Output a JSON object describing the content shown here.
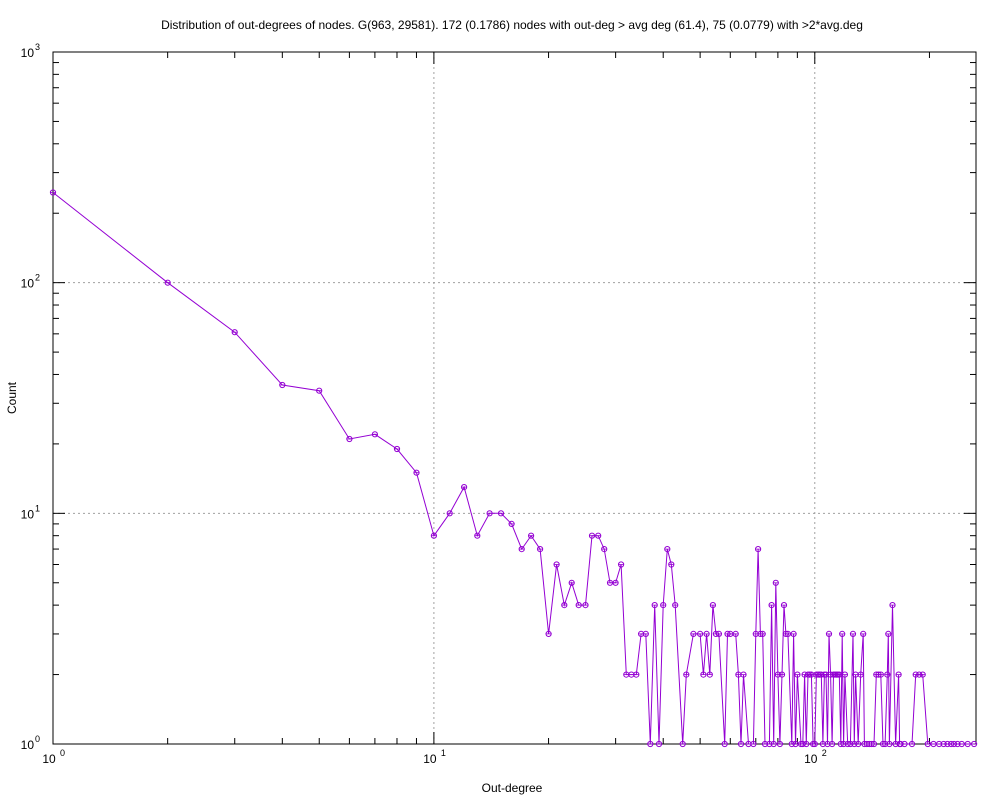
{
  "chart_data": {
    "type": "line",
    "title": "Distribution of out-degrees of nodes. G(963, 29581). 172 (0.1786) nodes with out-deg > avg deg (61.4), 75 (0.0779) with >2*avg.deg",
    "xlabel": "Out-degree",
    "ylabel": "Count",
    "xscale": "log",
    "yscale": "log",
    "xlim": [
      1,
      265
    ],
    "ylim": [
      1,
      1000
    ],
    "grid": true,
    "line_color": "#9400d3",
    "x_ticks": [
      {
        "base": "10",
        "exp": "0",
        "value": 1
      },
      {
        "base": "10",
        "exp": "1",
        "value": 10
      },
      {
        "base": "10",
        "exp": "2",
        "value": 100
      }
    ],
    "y_ticks": [
      {
        "base": "10",
        "exp": "0",
        "value": 1
      },
      {
        "base": "10",
        "exp": "1",
        "value": 10
      },
      {
        "base": "10",
        "exp": "2",
        "value": 100
      },
      {
        "base": "10",
        "exp": "3",
        "value": 1000
      }
    ],
    "series": [
      {
        "points": [
          [
            1,
            246
          ],
          [
            2,
            100
          ],
          [
            3,
            61
          ],
          [
            4,
            36
          ],
          [
            5,
            34
          ],
          [
            6,
            21
          ],
          [
            7,
            22
          ],
          [
            8,
            19
          ],
          [
            9,
            15
          ],
          [
            10,
            8
          ],
          [
            11,
            10
          ],
          [
            12,
            13
          ],
          [
            13,
            8
          ],
          [
            14,
            10
          ],
          [
            15,
            10
          ],
          [
            16,
            9
          ],
          [
            17,
            7
          ],
          [
            18,
            8
          ],
          [
            19,
            7
          ],
          [
            20,
            3
          ],
          [
            21,
            6
          ],
          [
            22,
            4
          ],
          [
            23,
            5
          ],
          [
            24,
            4
          ],
          [
            25,
            4
          ],
          [
            26,
            8
          ],
          [
            27,
            8
          ],
          [
            28,
            7
          ],
          [
            29,
            5
          ],
          [
            30,
            5
          ],
          [
            31,
            6
          ],
          [
            32,
            2
          ],
          [
            33,
            2
          ],
          [
            34,
            2
          ],
          [
            35,
            3
          ],
          [
            36,
            3
          ],
          [
            37,
            1
          ],
          [
            38,
            4
          ],
          [
            39,
            1
          ],
          [
            40,
            4
          ],
          [
            41,
            7
          ],
          [
            42,
            6
          ],
          [
            43,
            4
          ],
          [
            45,
            1
          ],
          [
            46,
            2
          ],
          [
            48,
            3
          ],
          [
            50,
            3
          ],
          [
            51,
            2
          ],
          [
            52,
            3
          ],
          [
            53,
            2
          ],
          [
            54,
            4
          ],
          [
            55,
            3
          ],
          [
            56,
            3
          ],
          [
            58,
            1
          ],
          [
            59,
            3
          ],
          [
            60,
            3
          ],
          [
            62,
            3
          ],
          [
            63,
            2
          ],
          [
            64,
            1
          ],
          [
            65,
            2
          ],
          [
            67,
            1
          ],
          [
            69,
            1
          ],
          [
            70,
            3
          ],
          [
            71,
            7
          ],
          [
            72,
            3
          ],
          [
            73,
            3
          ],
          [
            74,
            1
          ],
          [
            76,
            1
          ],
          [
            77,
            4
          ],
          [
            78,
            1
          ],
          [
            79,
            5
          ],
          [
            80,
            2
          ],
          [
            81,
            1
          ],
          [
            82,
            2
          ],
          [
            83,
            4
          ],
          [
            84,
            3
          ],
          [
            85,
            3
          ],
          [
            87,
            1
          ],
          [
            88,
            3
          ],
          [
            89,
            1
          ],
          [
            90,
            2
          ],
          [
            92,
            1
          ],
          [
            93,
            1
          ],
          [
            94,
            2
          ],
          [
            95,
            1
          ],
          [
            96,
            2
          ],
          [
            97,
            2
          ],
          [
            98,
            2
          ],
          [
            99,
            1
          ],
          [
            100,
            1
          ],
          [
            101,
            2
          ],
          [
            102,
            2
          ],
          [
            103,
            2
          ],
          [
            104,
            2
          ],
          [
            105,
            1
          ],
          [
            106,
            2
          ],
          [
            107,
            2
          ],
          [
            108,
            1
          ],
          [
            109,
            3
          ],
          [
            110,
            2
          ],
          [
            111,
            1
          ],
          [
            112,
            2
          ],
          [
            113,
            2
          ],
          [
            114,
            2
          ],
          [
            115,
            2
          ],
          [
            116,
            2
          ],
          [
            117,
            1
          ],
          [
            118,
            3
          ],
          [
            119,
            1
          ],
          [
            120,
            2
          ],
          [
            122,
            1
          ],
          [
            124,
            1
          ],
          [
            126,
            3
          ],
          [
            127,
            1
          ],
          [
            128,
            2
          ],
          [
            130,
            1
          ],
          [
            132,
            2
          ],
          [
            134,
            3
          ],
          [
            135,
            1
          ],
          [
            137,
            1
          ],
          [
            139,
            1
          ],
          [
            141,
            1
          ],
          [
            143,
            1
          ],
          [
            145,
            2
          ],
          [
            147,
            2
          ],
          [
            149,
            2
          ],
          [
            151,
            1
          ],
          [
            153,
            1
          ],
          [
            155,
            2
          ],
          [
            156,
            3
          ],
          [
            157,
            1
          ],
          [
            160,
            4
          ],
          [
            163,
            1
          ],
          [
            166,
            2
          ],
          [
            167,
            1
          ],
          [
            168,
            1
          ],
          [
            172,
            1
          ],
          [
            180,
            1
          ],
          [
            184,
            2
          ],
          [
            188,
            2
          ],
          [
            192,
            2
          ],
          [
            198,
            1
          ],
          [
            205,
            1
          ],
          [
            212,
            1
          ],
          [
            218,
            1
          ],
          [
            223,
            1
          ],
          [
            228,
            1
          ],
          [
            232,
            1
          ],
          [
            237,
            1
          ],
          [
            243,
            1
          ],
          [
            252,
            1
          ],
          [
            262,
            1
          ]
        ]
      }
    ]
  }
}
